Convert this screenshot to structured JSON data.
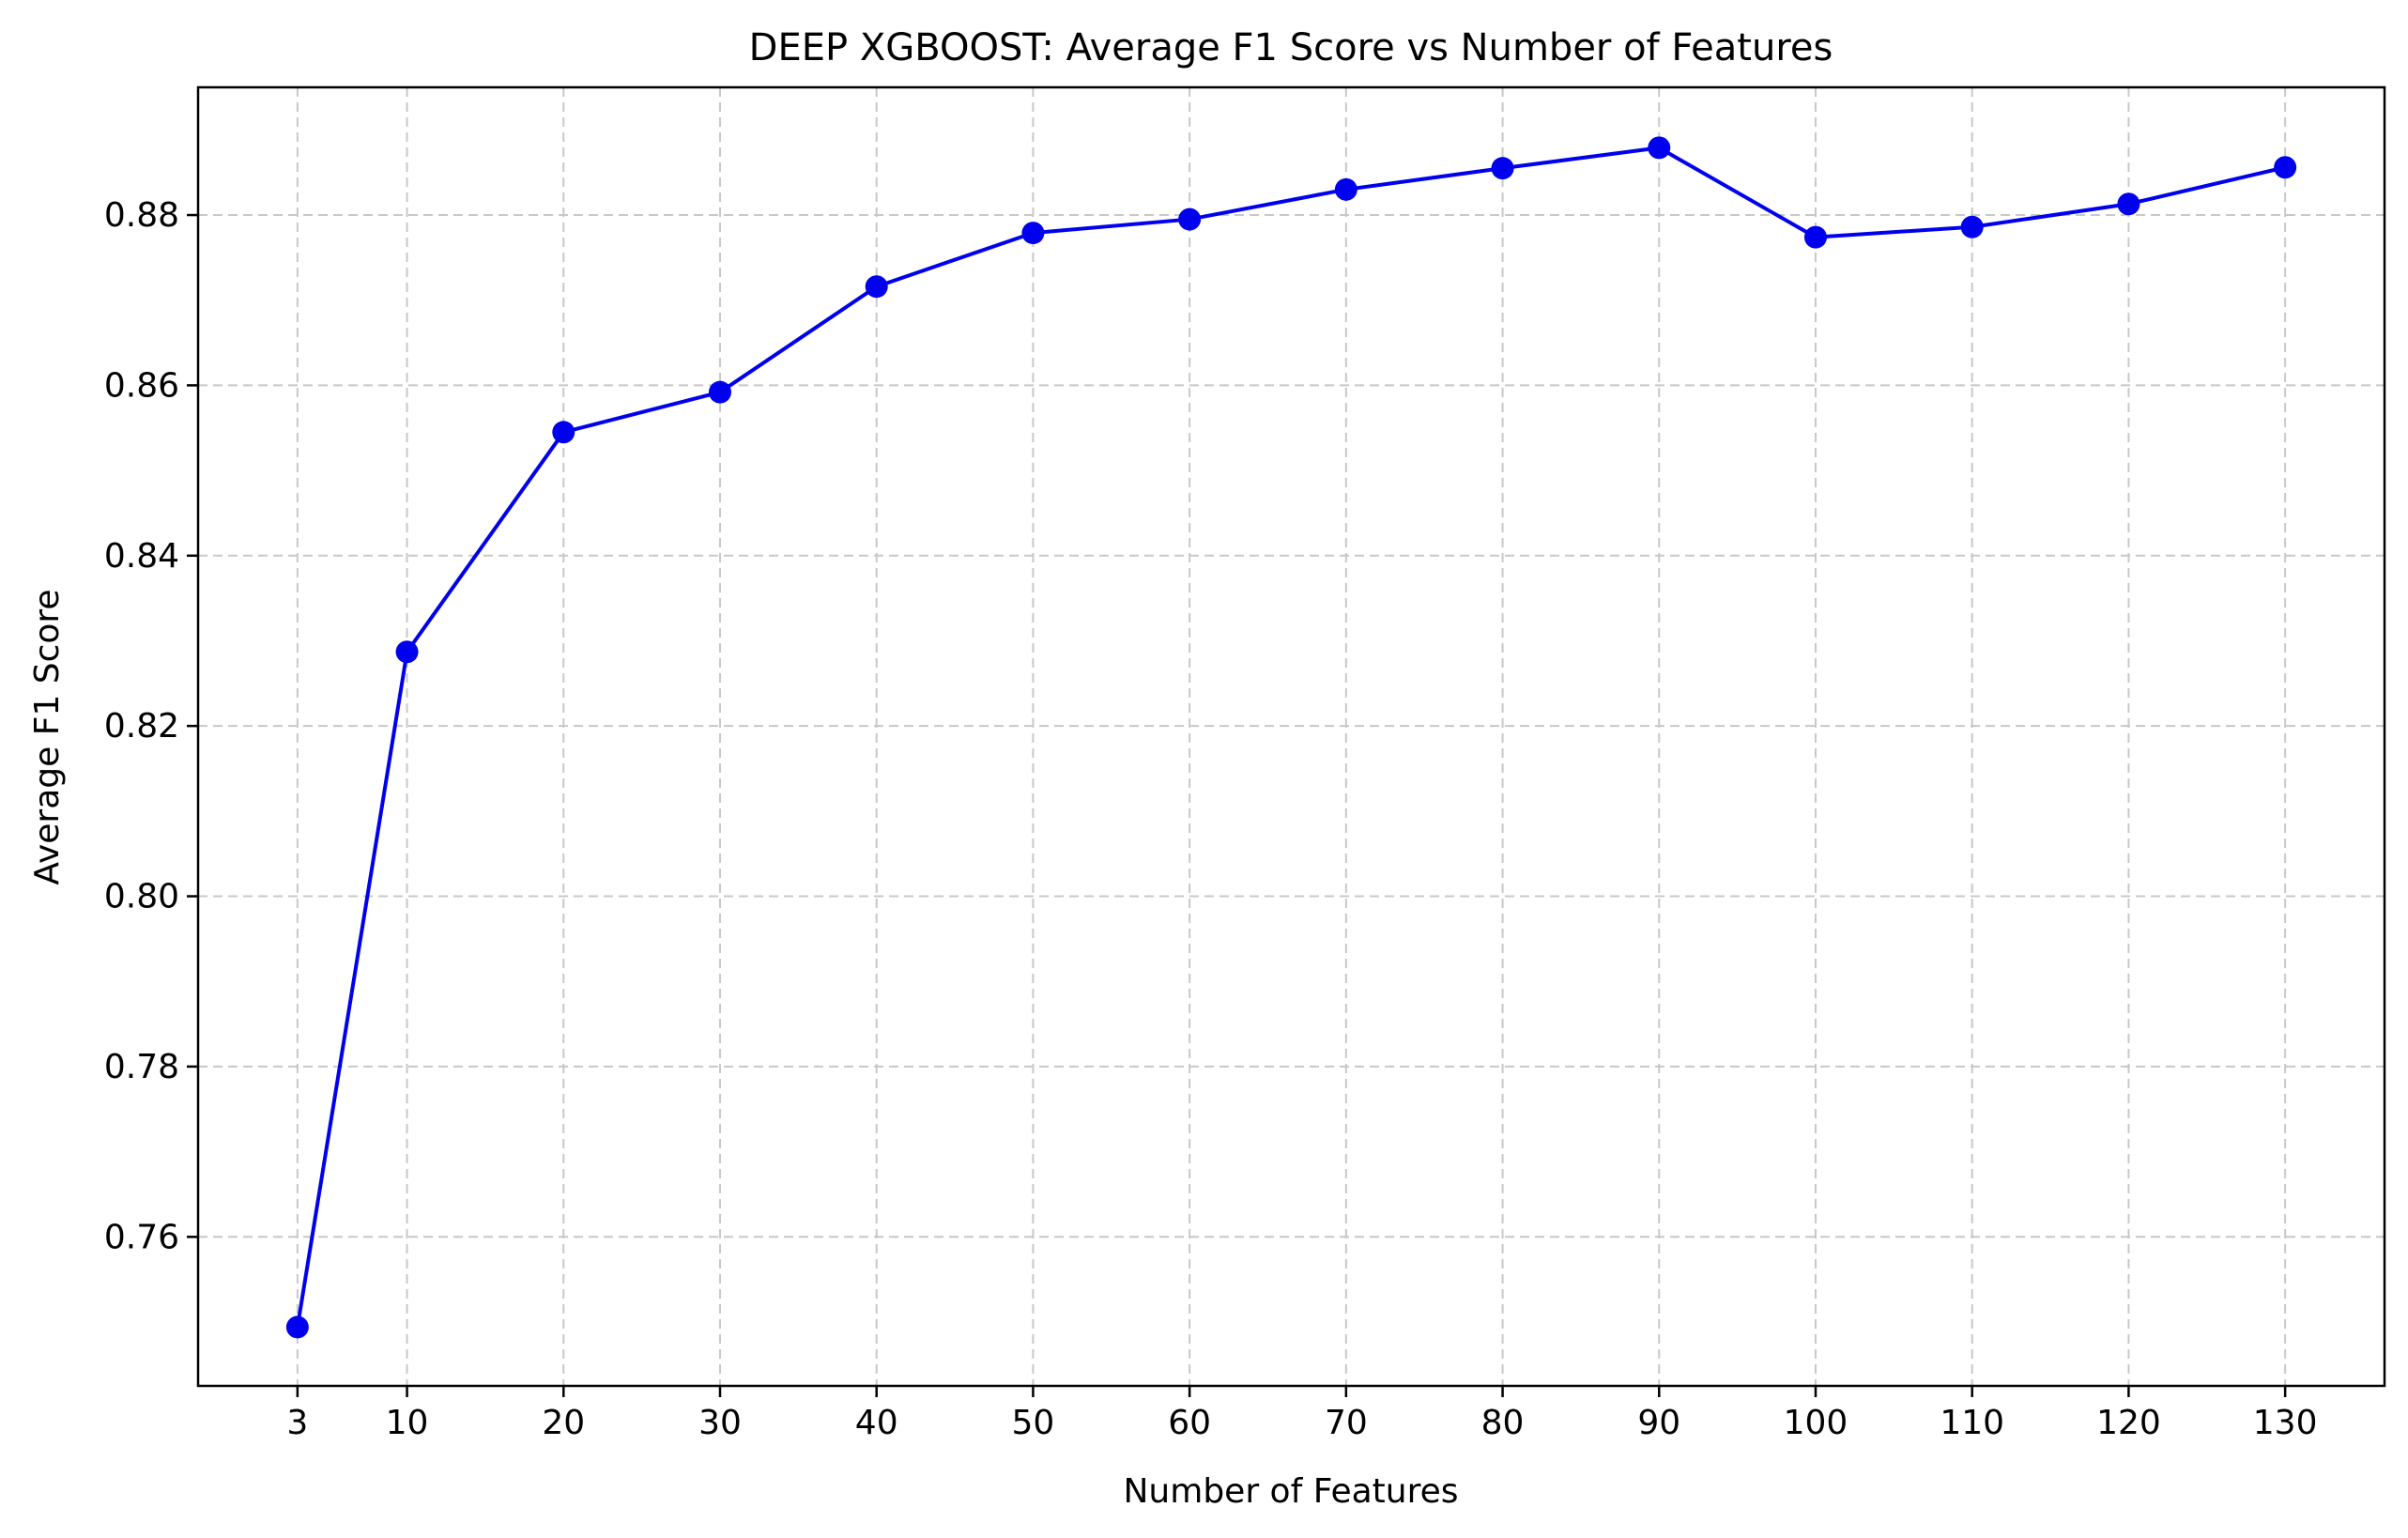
{
  "chart_data": {
    "type": "line",
    "title": "DEEP XGBOOST: Average F1 Score vs Number of Features",
    "xlabel": "Number of Features",
    "ylabel": "Average F1 Score",
    "xticks": [
      3,
      10,
      20,
      30,
      40,
      50,
      60,
      70,
      80,
      90,
      100,
      110,
      120,
      130
    ],
    "yticks": [
      0.76,
      0.78,
      0.8,
      0.82,
      0.84,
      0.86,
      0.88
    ],
    "ytick_labels": [
      "0.76",
      "0.78",
      "0.80",
      "0.82",
      "0.84",
      "0.86",
      "0.88"
    ],
    "xlim": [
      -3.35,
      136.35
    ],
    "ylim": [
      0.7425,
      0.895
    ],
    "grid": true,
    "series": [
      {
        "color": "#0000ee",
        "marker": "circle",
        "x": [
          3,
          10,
          20,
          30,
          40,
          50,
          60,
          70,
          80,
          90,
          100,
          110,
          120,
          130
        ],
        "y": [
          0.7494,
          0.8287,
          0.8545,
          0.8592,
          0.8716,
          0.8779,
          0.8795,
          0.883,
          0.8855,
          0.8879,
          0.8774,
          0.8786,
          0.8813,
          0.8856
        ]
      }
    ]
  }
}
